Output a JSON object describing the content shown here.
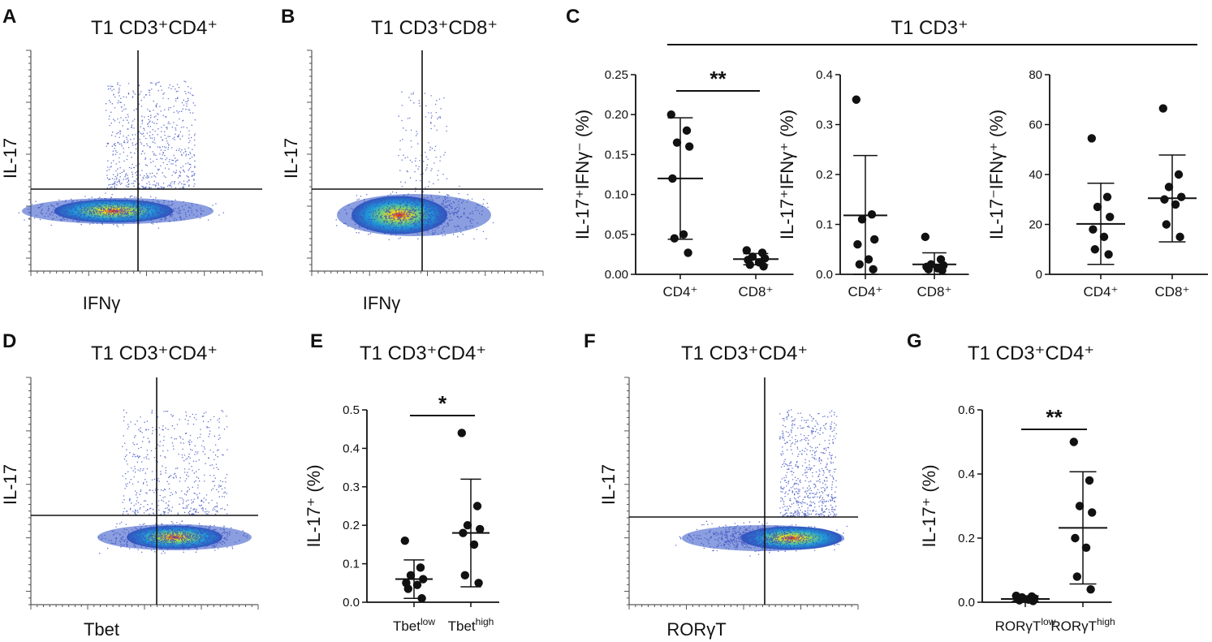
{
  "panels": {
    "A": {
      "letter": "A",
      "title": "T1 CD3⁺CD4⁺",
      "xlabel": "IFNγ",
      "ylabel": "IL-17"
    },
    "B": {
      "letter": "B",
      "title": "T1 CD3⁺CD8⁺",
      "xlabel": "IFNγ",
      "ylabel": "IL-17"
    },
    "C": {
      "letter": "C",
      "title": "T1 CD3⁺"
    },
    "D": {
      "letter": "D",
      "title": "T1 CD3⁺CD4⁺",
      "xlabel": "Tbet",
      "ylabel": "IL-17"
    },
    "E": {
      "letter": "E",
      "title": "T1 CD3⁺CD4⁺"
    },
    "F": {
      "letter": "F",
      "title": "T1 CD3⁺CD4⁺",
      "xlabel": "RORγT",
      "ylabel": "IL-17"
    },
    "G": {
      "letter": "G",
      "title": "T1 CD3⁺CD4⁺"
    }
  },
  "chart_data": [
    {
      "id": "C1",
      "type": "scatter",
      "ylabel": "IL-17⁺IFNγ⁻ (%)",
      "categories": [
        "CD4⁺",
        "CD8⁺"
      ],
      "ylim": [
        0,
        0.25
      ],
      "yticks": [
        0.0,
        0.05,
        0.1,
        0.15,
        0.2,
        0.25
      ],
      "yticklabels": [
        "0.00",
        "0.05",
        "0.10",
        "0.15",
        "0.20",
        "0.25"
      ],
      "points": [
        [
          0.2,
          0.18,
          0.165,
          0.16,
          0.12,
          0.05,
          0.045,
          0.027
        ],
        [
          0.03,
          0.027,
          0.022,
          0.02,
          0.018,
          0.015,
          0.012,
          0.01
        ]
      ],
      "mean": [
        0.12,
        0.019
      ],
      "sd_low": [
        0.044,
        0.012
      ],
      "sd_high": [
        0.196,
        0.026
      ],
      "significance": "**"
    },
    {
      "id": "C2",
      "type": "scatter",
      "ylabel": "IL-17⁺IFNγ⁺ (%)",
      "categories": [
        "CD4⁺",
        "CD8⁺"
      ],
      "ylim": [
        0,
        0.4
      ],
      "yticks": [
        0,
        0.1,
        0.2,
        0.3,
        0.4
      ],
      "yticklabels": [
        "0.0",
        "0.1",
        "0.2",
        "0.3",
        "0.4"
      ],
      "points": [
        [
          0.35,
          0.12,
          0.11,
          0.07,
          0.06,
          0.03,
          0.02,
          0.01
        ],
        [
          0.075,
          0.03,
          0.02,
          0.018,
          0.015,
          0.012,
          0.01,
          0.008
        ]
      ],
      "mean": [
        0.118,
        0.02
      ],
      "sd_low": [
        0.0,
        0.0
      ],
      "sd_high": [
        0.238,
        0.043
      ],
      "significance": ""
    },
    {
      "id": "C3",
      "type": "scatter",
      "ylabel": "IL-17⁻IFNγ⁺ (%)",
      "categories": [
        "CD4⁺",
        "CD8⁺"
      ],
      "ylim": [
        0,
        80
      ],
      "yticks": [
        0,
        20,
        40,
        60,
        80
      ],
      "yticklabels": [
        "0",
        "20",
        "40",
        "60",
        "80"
      ],
      "points": [
        [
          54.5,
          31,
          27,
          23,
          18,
          15,
          10,
          8
        ],
        [
          66.5,
          40,
          35,
          31,
          30,
          28,
          20,
          15
        ]
      ],
      "mean": [
        20.2,
        30.5
      ],
      "sd_low": [
        4,
        13
      ],
      "sd_high": [
        36.5,
        47.8
      ],
      "significance": ""
    },
    {
      "id": "E",
      "type": "scatter",
      "ylabel": "IL-17⁺ (%)",
      "categories": [
        "Tbet",
        "Tbet"
      ],
      "category_sup": [
        "low",
        "high"
      ],
      "ylim": [
        0,
        0.5
      ],
      "yticks": [
        0,
        0.1,
        0.2,
        0.3,
        0.4,
        0.5
      ],
      "yticklabels": [
        "0.0",
        "0.1",
        "0.2",
        "0.3",
        "0.4",
        "0.5"
      ],
      "points": [
        [
          0.16,
          0.09,
          0.07,
          0.06,
          0.05,
          0.045,
          0.035,
          0.01
        ],
        [
          0.44,
          0.25,
          0.2,
          0.19,
          0.18,
          0.15,
          0.07,
          0.05
        ]
      ],
      "mean": [
        0.06,
        0.18
      ],
      "sd_low": [
        0.01,
        0.04
      ],
      "sd_high": [
        0.11,
        0.32
      ],
      "significance": "*"
    },
    {
      "id": "G",
      "type": "scatter",
      "ylabel": "IL-17⁺ (%)",
      "categories": [
        "RORγT",
        "RORγT"
      ],
      "category_sup": [
        "low",
        "high"
      ],
      "ylim": [
        0,
        0.6
      ],
      "yticks": [
        0,
        0.2,
        0.4,
        0.6
      ],
      "yticklabels": [
        "0.0",
        "0.2",
        "0.4",
        "0.6"
      ],
      "points": [
        [
          0.02,
          0.018,
          0.015,
          0.012,
          0.01,
          0.008,
          0.006,
          0.004
        ],
        [
          0.5,
          0.38,
          0.3,
          0.28,
          0.2,
          0.17,
          0.08,
          0.04
        ]
      ],
      "mean": [
        0.01,
        0.232
      ],
      "sd_low": [
        0.003,
        0.057
      ],
      "sd_high": [
        0.02,
        0.407
      ],
      "significance": "**"
    }
  ]
}
